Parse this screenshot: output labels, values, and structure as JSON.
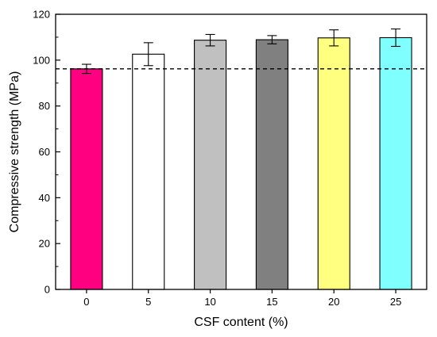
{
  "chart_data": {
    "type": "bar",
    "xlabel": "CSF content (%)",
    "ylabel": "Compressive strength (MPa)",
    "categories": [
      "0",
      "5",
      "10",
      "15",
      "20",
      "25"
    ],
    "values": [
      96.2,
      102.6,
      108.7,
      108.9,
      109.7,
      109.8
    ],
    "errors": [
      2.0,
      5.0,
      2.5,
      1.8,
      3.5,
      3.8
    ],
    "colors": [
      "#ff0080",
      "#ffffff",
      "#c0c0c0",
      "#808080",
      "#ffff80",
      "#80ffff"
    ],
    "bar_stroke": "#000000",
    "ylim": [
      0,
      120
    ],
    "yticks": [
      0,
      20,
      40,
      60,
      80,
      100,
      120
    ],
    "reference_line": {
      "value": 96.2,
      "style": "dashed"
    },
    "grid": false,
    "legend": "none"
  }
}
